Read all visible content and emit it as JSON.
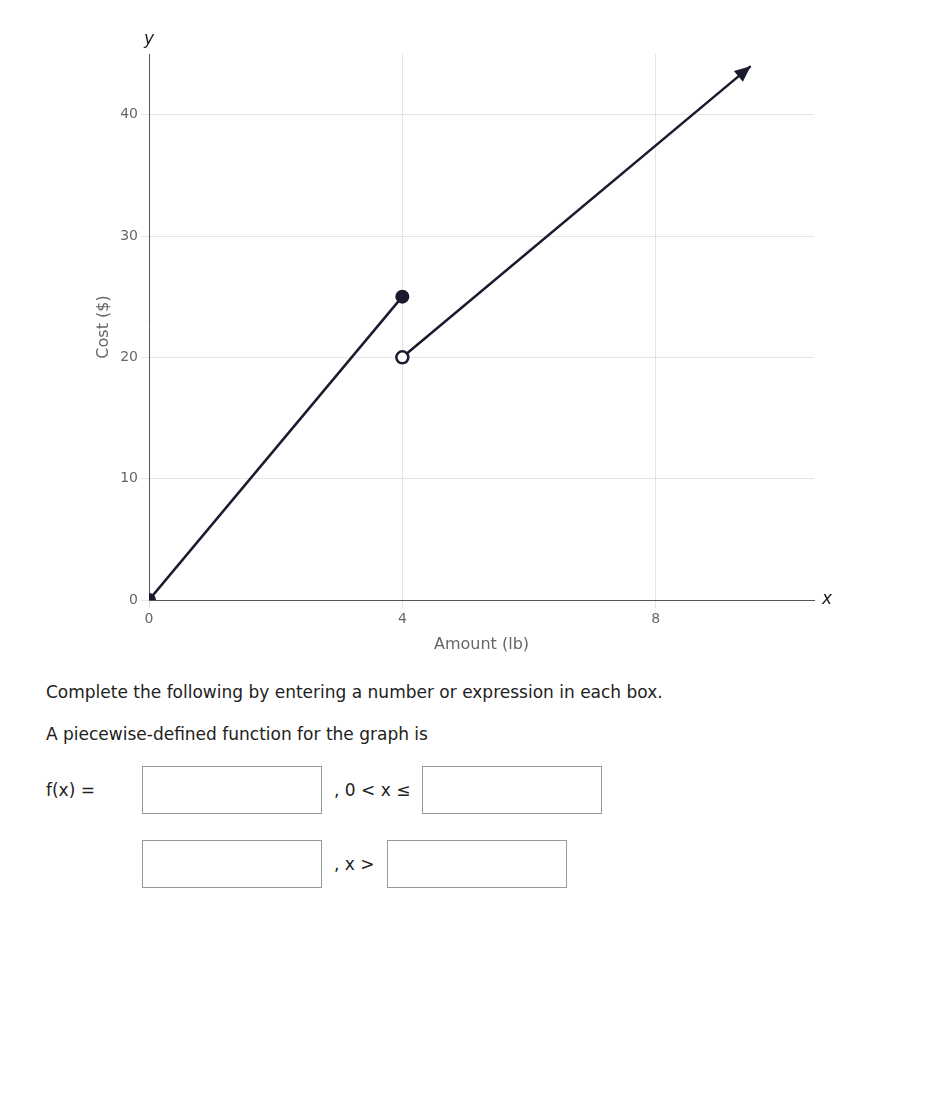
{
  "chart_data": {
    "type": "line",
    "xlabel": "Amount (lb)",
    "ylabel": "Cost ($)",
    "xlim": [
      0,
      10.5
    ],
    "ylim": [
      0,
      45
    ],
    "xticks": [
      0,
      4,
      8
    ],
    "yticks": [
      0,
      10,
      20,
      30,
      40
    ],
    "grid": true,
    "series": [
      {
        "type": "line",
        "x": [
          0,
          4
        ],
        "values": [
          0,
          25
        ],
        "color": "#1a1a2e",
        "marker": "circle"
      },
      {
        "type": "line",
        "x": [
          4,
          9.5
        ],
        "values": [
          20,
          44
        ],
        "color": "#1a1a2e",
        "marker": "arrow"
      },
      {
        "type": "scatter",
        "x": [
          4
        ],
        "values": [
          20
        ],
        "color": "#1a1a2e",
        "marker": "open"
      }
    ],
    "annotations": [
      "x",
      "y",
      "Complete the following by entering a number or expression in each box.",
      "A piecewise-defined function for the graph is",
      "f(x) =",
      ", 0 < x ≤",
      ", x >"
    ]
  }
}
